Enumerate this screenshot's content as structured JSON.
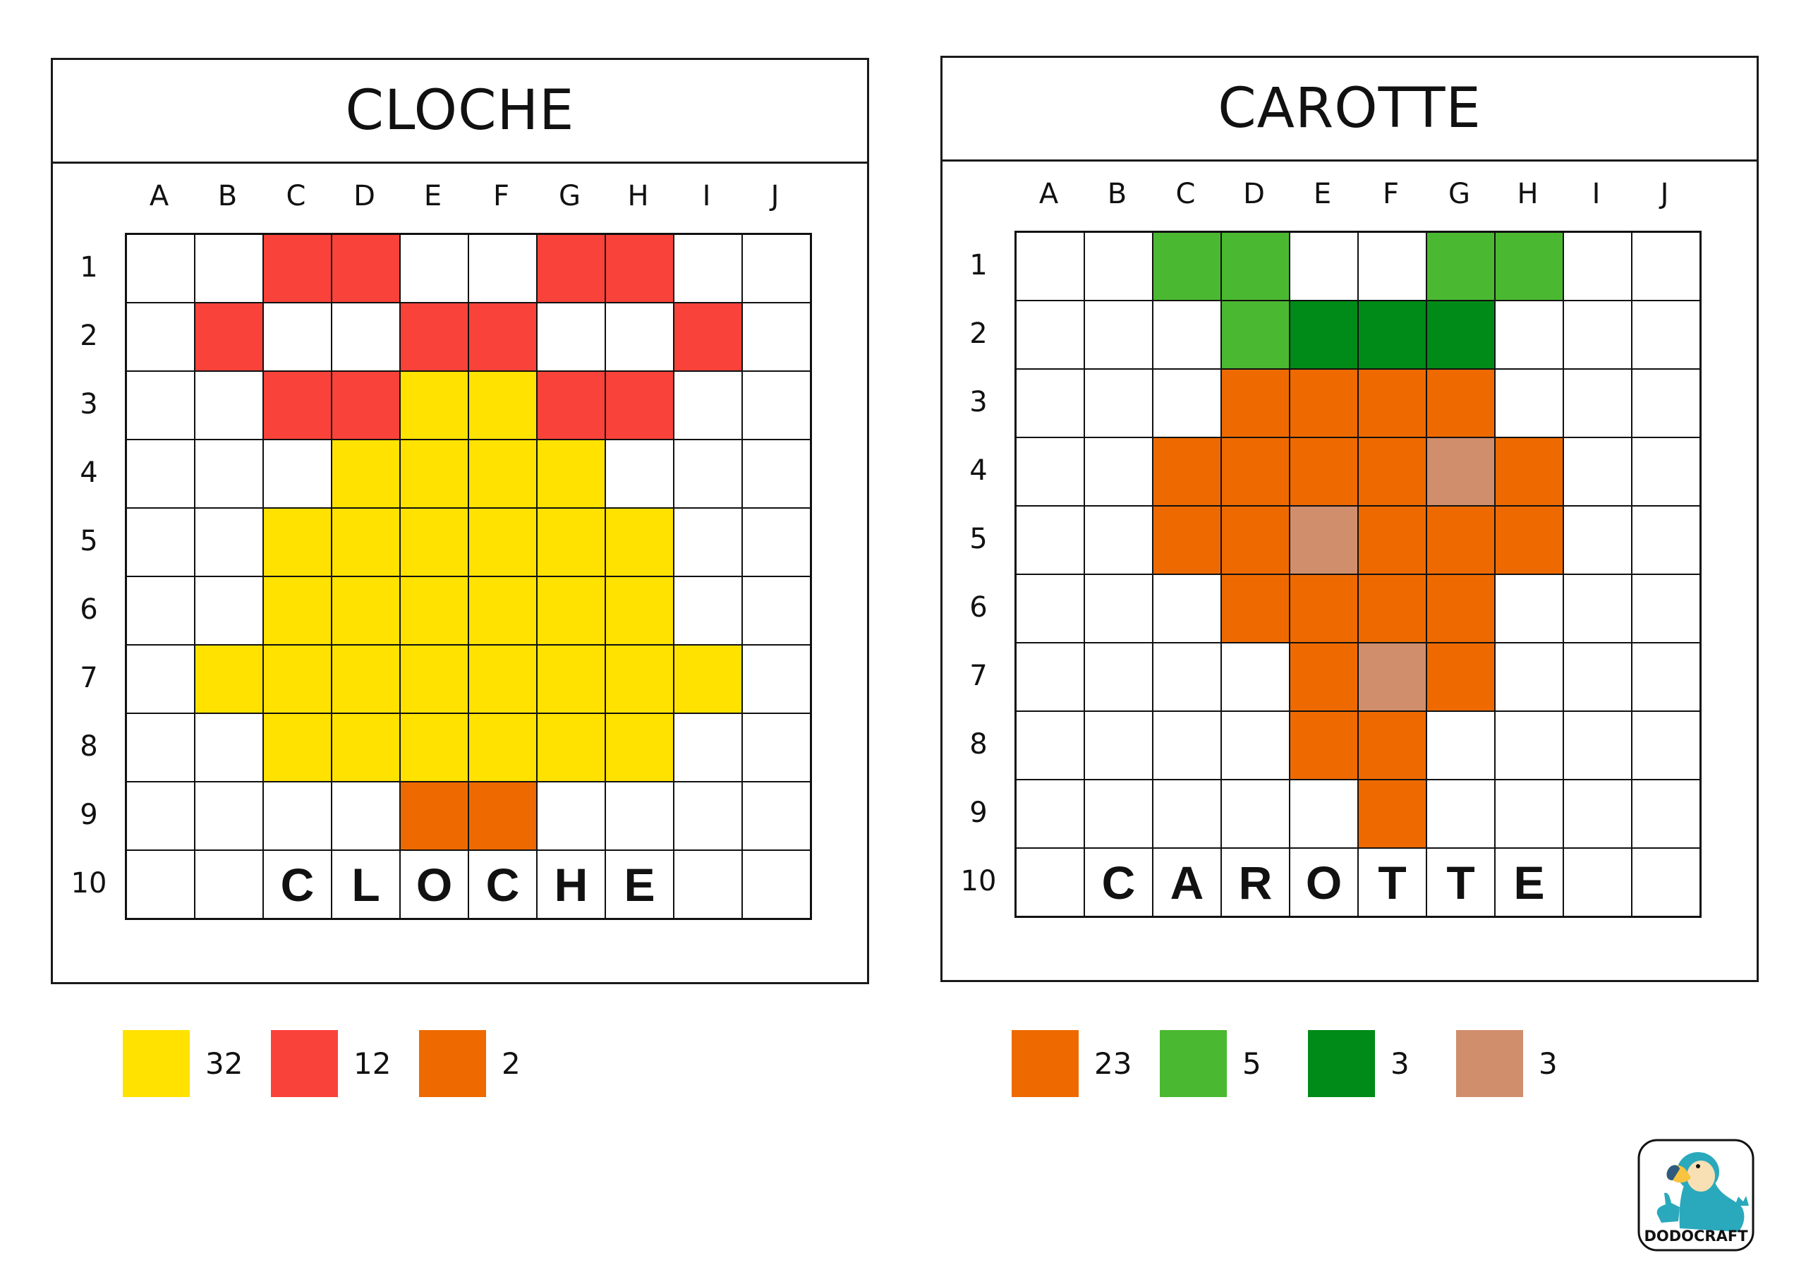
{
  "columns": [
    "A",
    "B",
    "C",
    "D",
    "E",
    "F",
    "G",
    "H",
    "I",
    "J"
  ],
  "rows": [
    "1",
    "2",
    "3",
    "4",
    "5",
    "6",
    "7",
    "8",
    "9",
    "10"
  ],
  "colors": {
    "Y": "#FFE200",
    "R": "#F9423A",
    "O": "#EE6A00",
    "L": "#4BB831",
    "D": "#008A17",
    "T": "#D08E6C",
    "W": "#FFFFFF"
  },
  "puzzles": [
    {
      "title": "CLOCHE",
      "grid": [
        "WWRRWWRRWW",
        "WRWWRRWWRW",
        "WWRRYYRRWW",
        "WWWYYYYWWW",
        "WWYYYYYYWW",
        "WWYYYYYYWW",
        "WYYYYYYYYW",
        "WWYYYYYYWW",
        "WWWWOOWWWW",
        "WWWWWWWWWW"
      ],
      "letters": [
        "",
        "",
        "C",
        "L",
        "O",
        "C",
        "H",
        "E",
        "",
        ""
      ],
      "legend": [
        {
          "color": "Y",
          "count": "32"
        },
        {
          "color": "R",
          "count": "12"
        },
        {
          "color": "O",
          "count": "2"
        }
      ]
    },
    {
      "title": "CAROTTE",
      "grid": [
        "WWLLWWLLWW",
        "WWWLDDDWWW",
        "WWWOOOOWWW",
        "WWOOOOTOWW",
        "WWOOTOOOWW",
        "WWWOOOOWWW",
        "WWWWOTOWWW",
        "WWWWOOWWWW",
        "WWWWWOWWWW",
        "WWWWWWWWWW"
      ],
      "letters": [
        "",
        "C",
        "A",
        "R",
        "O",
        "T",
        "T",
        "E",
        "",
        ""
      ],
      "legend": [
        {
          "color": "O",
          "count": "23"
        },
        {
          "color": "L",
          "count": "5"
        },
        {
          "color": "D",
          "count": "3"
        },
        {
          "color": "T",
          "count": "3"
        }
      ]
    }
  ],
  "logo": {
    "text": "DODOCRAFT",
    "icon": "dodo-bird-mascot-icon"
  }
}
